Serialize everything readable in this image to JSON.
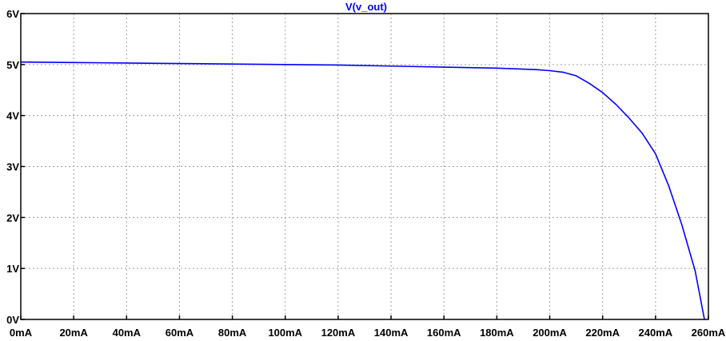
{
  "chart_data": {
    "type": "line",
    "title": "V(v_out)",
    "xlabel": "",
    "ylabel": "",
    "xlim": [
      0,
      260
    ],
    "ylim": [
      0,
      6
    ],
    "x_ticks": [
      {
        "value": 0,
        "label": "0mA"
      },
      {
        "value": 20,
        "label": "20mA"
      },
      {
        "value": 40,
        "label": "40mA"
      },
      {
        "value": 60,
        "label": "60mA"
      },
      {
        "value": 80,
        "label": "80mA"
      },
      {
        "value": 100,
        "label": "100mA"
      },
      {
        "value": 120,
        "label": "120mA"
      },
      {
        "value": 140,
        "label": "140mA"
      },
      {
        "value": 160,
        "label": "160mA"
      },
      {
        "value": 180,
        "label": "180mA"
      },
      {
        "value": 200,
        "label": "200mA"
      },
      {
        "value": 220,
        "label": "220mA"
      },
      {
        "value": 240,
        "label": "240mA"
      },
      {
        "value": 260,
        "label": "260mA"
      }
    ],
    "y_ticks": [
      {
        "value": 0,
        "label": "0V"
      },
      {
        "value": 1,
        "label": "1V"
      },
      {
        "value": 2,
        "label": "2V"
      },
      {
        "value": 3,
        "label": "3V"
      },
      {
        "value": 4,
        "label": "4V"
      },
      {
        "value": 5,
        "label": "5V"
      },
      {
        "value": 6,
        "label": "6V"
      }
    ],
    "grid": true,
    "series": [
      {
        "name": "V(v_out)",
        "color": "#0000ff",
        "x": [
          0,
          20,
          40,
          60,
          80,
          100,
          120,
          140,
          160,
          180,
          195,
          200,
          205,
          210,
          215,
          220,
          225,
          230,
          235,
          240,
          245,
          250,
          255,
          258.5
        ],
        "y": [
          5.05,
          5.04,
          5.03,
          5.02,
          5.01,
          5.0,
          4.99,
          4.97,
          4.95,
          4.93,
          4.9,
          4.88,
          4.85,
          4.78,
          4.63,
          4.45,
          4.22,
          3.95,
          3.65,
          3.25,
          2.62,
          1.85,
          0.95,
          0.0
        ]
      }
    ]
  }
}
